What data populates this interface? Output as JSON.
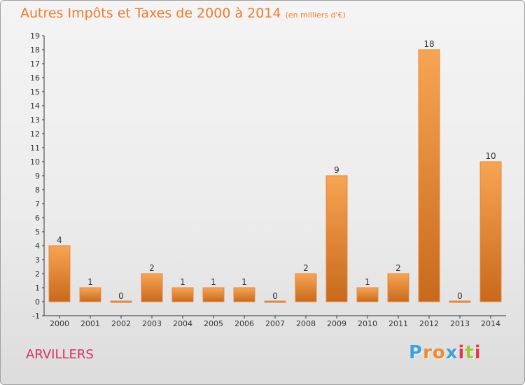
{
  "title": {
    "main": "Autres Impôts et Taxes de 2000 à 2014",
    "unit": "(en milliers d'€)"
  },
  "commune": "ARVILLERS",
  "logo": {
    "letters": [
      "P",
      "r",
      "o",
      "x",
      "i",
      "t",
      "i"
    ],
    "colors": [
      "#3fa3d8",
      "#f08a2a",
      "#f08a2a",
      "#3fa3d8",
      "#e63946",
      "#9cc83a",
      "#e63946"
    ]
  },
  "colors": {
    "bar_light": "#f7a553",
    "bar_dark": "#c8691c",
    "title": "#f07a2e",
    "commune": "#d6305f"
  },
  "chart_data": {
    "type": "bar",
    "title": "Autres Impôts et Taxes de 2000 à 2014",
    "subtitle": "(en milliers d'€)",
    "categories": [
      "2000",
      "2001",
      "2002",
      "2003",
      "2004",
      "2005",
      "2006",
      "2007",
      "2008",
      "2009",
      "2010",
      "2011",
      "2012",
      "2013",
      "2014"
    ],
    "values": [
      4,
      1,
      0,
      2,
      1,
      1,
      1,
      0,
      2,
      9,
      1,
      2,
      18,
      0,
      10
    ],
    "ylim": [
      -1,
      19
    ],
    "yticks": [
      -1,
      0,
      1,
      2,
      3,
      4,
      5,
      6,
      7,
      8,
      9,
      10,
      11,
      12,
      13,
      14,
      15,
      16,
      17,
      18,
      19
    ],
    "grid": false,
    "xlabel": "",
    "ylabel": ""
  }
}
